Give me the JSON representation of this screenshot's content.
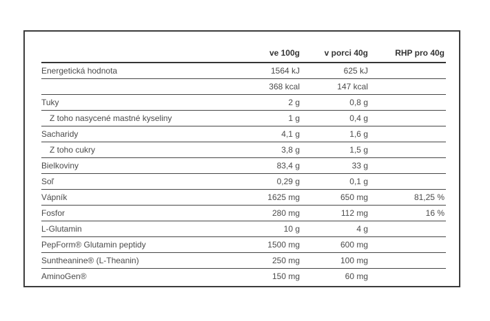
{
  "table": {
    "headers": [
      "",
      "ve 100g",
      "v porci 40g",
      "RHP pro 40g"
    ],
    "rows": [
      {
        "label": "Energetická hodnota",
        "v100": "1564 kJ",
        "porce": "625 kJ",
        "rhp": "",
        "indent": false
      },
      {
        "label": "",
        "v100": "368 kcal",
        "porce": "147 kcal",
        "rhp": "",
        "indent": false
      },
      {
        "label": "Tuky",
        "v100": "2 g",
        "porce": "0,8 g",
        "rhp": "",
        "indent": false
      },
      {
        "label": "Z toho nasycené mastné kyseliny",
        "v100": "1 g",
        "porce": "0,4 g",
        "rhp": "",
        "indent": true
      },
      {
        "label": "Sacharidy",
        "v100": "4,1 g",
        "porce": "1,6 g",
        "rhp": "",
        "indent": false
      },
      {
        "label": "Z toho cukry",
        "v100": "3,8 g",
        "porce": "1,5 g",
        "rhp": "",
        "indent": true
      },
      {
        "label": "Bielkoviny",
        "v100": "83,4 g",
        "porce": "33 g",
        "rhp": "",
        "indent": false
      },
      {
        "label": "Soľ",
        "v100": "0,29 g",
        "porce": "0,1 g",
        "rhp": "",
        "indent": false
      },
      {
        "label": "Vápník",
        "v100": "1625 mg",
        "porce": "650 mg",
        "rhp": "81,25 %",
        "indent": false
      },
      {
        "label": "Fosfor",
        "v100": "280 mg",
        "porce": "112 mg",
        "rhp": "16 %",
        "indent": false
      },
      {
        "label": "L-Glutamin",
        "v100": "10 g",
        "porce": "4 g",
        "rhp": "",
        "indent": false
      },
      {
        "label": "PepForm® Glutamin peptidy",
        "v100": "1500 mg",
        "porce": "600 mg",
        "rhp": "",
        "indent": false
      },
      {
        "label": "Suntheanine® (L-Theanin)",
        "v100": "250 mg",
        "porce": "100 mg",
        "rhp": "",
        "indent": false
      },
      {
        "label": "AminoGen®",
        "v100": "150 mg",
        "porce": "60 mg",
        "rhp": "",
        "indent": false
      }
    ]
  }
}
